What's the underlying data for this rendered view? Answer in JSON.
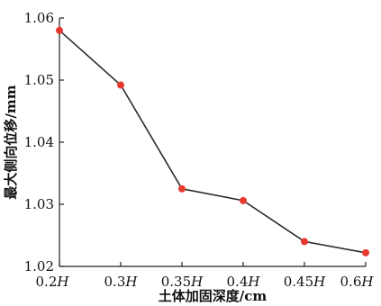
{
  "chart_data": {
    "type": "line",
    "xlabel": "土体加固深度/cm",
    "ylabel": "最大侧向位移/mm",
    "x": [
      "0.2H",
      "0.3H",
      "0.35H",
      "0.4H",
      "0.45H",
      "0.6H"
    ],
    "x_tick_labels": [
      {
        "num": "0.2",
        "var": "H"
      },
      {
        "num": "0.3",
        "var": "H"
      },
      {
        "num": "0.35",
        "var": "H"
      },
      {
        "num": "0.4",
        "var": "H"
      },
      {
        "num": "0.45",
        "var": "H"
      },
      {
        "num": "0.6",
        "var": "H"
      }
    ],
    "series": [
      {
        "values": [
          1.058,
          1.0492,
          1.0325,
          1.0306,
          1.024,
          1.0222
        ],
        "marker_color": "#e8392f",
        "line_color": "#2a2a2a"
      }
    ],
    "ylim": [
      1.02,
      1.06
    ],
    "y_ticks": [
      "1.02",
      "1.03",
      "1.04",
      "1.05",
      "1.06"
    ],
    "grid": false,
    "legend": "none"
  }
}
